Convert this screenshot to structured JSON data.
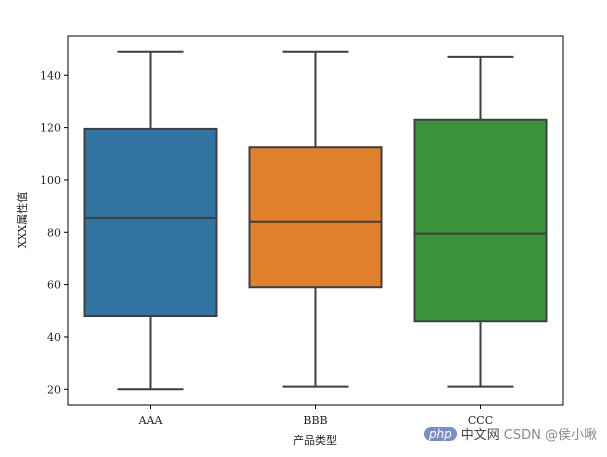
{
  "chart_data": {
    "type": "box",
    "title": "",
    "xlabel": "产品类型",
    "ylabel": "XXX属性值",
    "ylim": [
      14,
      155
    ],
    "yticks": [
      20,
      40,
      60,
      80,
      100,
      120,
      140
    ],
    "categories": [
      "AAA",
      "BBB",
      "CCC"
    ],
    "boxes": [
      {
        "category": "AAA",
        "min": 20,
        "q1": 48,
        "median": 85.5,
        "q3": 119.5,
        "max": 149,
        "color": "#3274a1"
      },
      {
        "category": "BBB",
        "min": 21,
        "q1": 59,
        "median": 84,
        "q3": 112.5,
        "max": 149,
        "color": "#e1812c"
      },
      {
        "category": "CCC",
        "min": 21,
        "q1": 46,
        "median": 79.5,
        "q3": 123,
        "max": 147,
        "color": "#3a923a"
      }
    ],
    "grid": false,
    "legend": "none"
  },
  "watermark": {
    "logo": "php",
    "site": "中文网",
    "author": "CSDN @侯小啾"
  }
}
